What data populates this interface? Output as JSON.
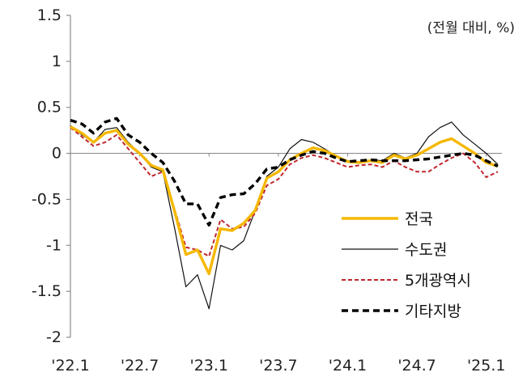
{
  "chart_data": {
    "type": "line",
    "unit_label": "(전월 대비, %)",
    "x_tick_labels": [
      "'22.1",
      "'22.7",
      "'23.1",
      "'23.7",
      "'24.1",
      "'24.7",
      "'25.1"
    ],
    "y_tick_labels": [
      "1.5",
      "1",
      "0.5",
      "0",
      "-0.5",
      "-1",
      "-1.5",
      "-2"
    ],
    "ylim": [
      -2,
      1.5
    ],
    "y_ticks": [
      1.5,
      1,
      0.5,
      0,
      -0.5,
      -1,
      -1.5,
      -2
    ],
    "x_months": 38,
    "grid": false,
    "zero_line": true,
    "legend_position": "lower-right",
    "series": [
      {
        "name": "전국",
        "color": "#f5b800",
        "style": "solid-thick",
        "values": [
          0.29,
          0.22,
          0.12,
          0.22,
          0.25,
          0.1,
          0.0,
          -0.13,
          -0.18,
          -0.62,
          -1.1,
          -1.05,
          -1.31,
          -0.82,
          -0.84,
          -0.76,
          -0.62,
          -0.27,
          -0.2,
          -0.07,
          0.0,
          0.06,
          0.03,
          -0.03,
          -0.09,
          -0.1,
          -0.08,
          -0.1,
          -0.02,
          -0.06,
          -0.02,
          0.05,
          0.12,
          0.16,
          0.08,
          0.0,
          -0.1,
          -0.14
        ]
      },
      {
        "name": "수도권",
        "color": "#111111",
        "style": "solid-thin",
        "values": [
          0.3,
          0.2,
          0.12,
          0.26,
          0.28,
          0.12,
          0.0,
          -0.15,
          -0.2,
          -0.8,
          -1.45,
          -1.32,
          -1.69,
          -1.0,
          -1.05,
          -0.95,
          -0.62,
          -0.25,
          -0.15,
          0.05,
          0.15,
          0.12,
          0.05,
          -0.03,
          -0.08,
          -0.1,
          -0.07,
          -0.08,
          0.0,
          -0.05,
          0.0,
          0.18,
          0.28,
          0.34,
          0.2,
          0.1,
          0.0,
          -0.12
        ]
      },
      {
        "name": "5개광역시",
        "color": "#c0272d",
        "style": "dashed",
        "values": [
          0.28,
          0.18,
          0.08,
          0.12,
          0.2,
          0.05,
          -0.1,
          -0.25,
          -0.2,
          -0.6,
          -1.02,
          -1.05,
          -1.12,
          -0.72,
          -0.82,
          -0.8,
          -0.65,
          -0.35,
          -0.28,
          -0.12,
          -0.05,
          -0.02,
          -0.05,
          -0.1,
          -0.15,
          -0.13,
          -0.12,
          -0.15,
          -0.08,
          -0.15,
          -0.2,
          -0.2,
          -0.12,
          -0.05,
          0.0,
          -0.1,
          -0.26,
          -0.2
        ]
      },
      {
        "name": "기타지방",
        "color": "#000000",
        "style": "dashed-thick",
        "values": [
          0.36,
          0.32,
          0.22,
          0.34,
          0.38,
          0.2,
          0.12,
          0.0,
          -0.1,
          -0.3,
          -0.55,
          -0.55,
          -0.78,
          -0.48,
          -0.45,
          -0.44,
          -0.33,
          -0.17,
          -0.15,
          -0.07,
          -0.02,
          0.02,
          0.0,
          -0.05,
          -0.09,
          -0.08,
          -0.07,
          -0.08,
          -0.08,
          -0.08,
          -0.07,
          -0.06,
          -0.04,
          -0.02,
          0.0,
          -0.02,
          -0.08,
          -0.14
        ]
      }
    ]
  }
}
